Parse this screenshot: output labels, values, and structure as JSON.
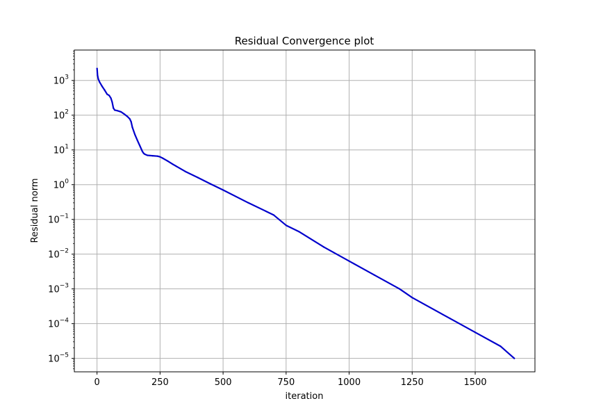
{
  "chart_data": {
    "type": "line",
    "title": "Residual Convergence plot",
    "xlabel": "iteration",
    "ylabel": "Residual norm",
    "xscale": "linear",
    "yscale": "log",
    "xlim": [
      -90,
      1737
    ],
    "ylim": [
      4.1e-06,
      7500.0
    ],
    "grid": true,
    "x_ticks": [
      {
        "value": 0,
        "label": "0"
      },
      {
        "value": 250,
        "label": "250"
      },
      {
        "value": 500,
        "label": "500"
      },
      {
        "value": 750,
        "label": "750"
      },
      {
        "value": 1000,
        "label": "1000"
      },
      {
        "value": 1250,
        "label": "1250"
      },
      {
        "value": 1500,
        "label": "1500"
      }
    ],
    "y_ticks": [
      {
        "value": 1000,
        "base": "10",
        "exp": "3"
      },
      {
        "value": 100,
        "base": "10",
        "exp": "2"
      },
      {
        "value": 10,
        "base": "10",
        "exp": "1"
      },
      {
        "value": 1,
        "base": "10",
        "exp": "0"
      },
      {
        "value": 0.1,
        "base": "10",
        "exp": "−1"
      },
      {
        "value": 0.01,
        "base": "10",
        "exp": "−2"
      },
      {
        "value": 0.001,
        "base": "10",
        "exp": "−3"
      },
      {
        "value": 0.0001,
        "base": "10",
        "exp": "−4"
      },
      {
        "value": 1e-05,
        "base": "10",
        "exp": "−5"
      }
    ],
    "colors": {
      "line": "#0000cc",
      "grid": "#b0b0b0"
    },
    "series": [
      {
        "x": [
          0,
          2,
          5,
          10,
          20,
          30,
          40,
          48,
          55,
          60,
          65,
          70,
          80,
          95,
          110,
          120,
          130,
          135,
          140,
          150,
          160,
          170,
          180,
          185,
          190,
          200,
          210,
          220,
          240,
          250,
          260,
          280,
          300,
          350,
          400,
          450,
          500,
          600,
          700,
          750,
          800,
          900,
          1000,
          1100,
          1200,
          1250,
          1300,
          1400,
          1500,
          1600,
          1655
        ],
        "y": [
          2200,
          1400,
          1100,
          900,
          680,
          530,
          400,
          370,
          310,
          240,
          160,
          140,
          135,
          125,
          105,
          92,
          78,
          65,
          45,
          28,
          19,
          13,
          9,
          8,
          7.5,
          7,
          6.9,
          6.8,
          6.6,
          6.3,
          5.8,
          4.8,
          3.9,
          2.4,
          1.6,
          1.05,
          0.7,
          0.3,
          0.135,
          0.0675,
          0.0448,
          0.0159,
          0.00631,
          0.00251,
          0.001,
          0.000562,
          0.000355,
          0.000141,
          5.62e-05,
          2.24e-05,
          1e-05
        ]
      }
    ]
  }
}
